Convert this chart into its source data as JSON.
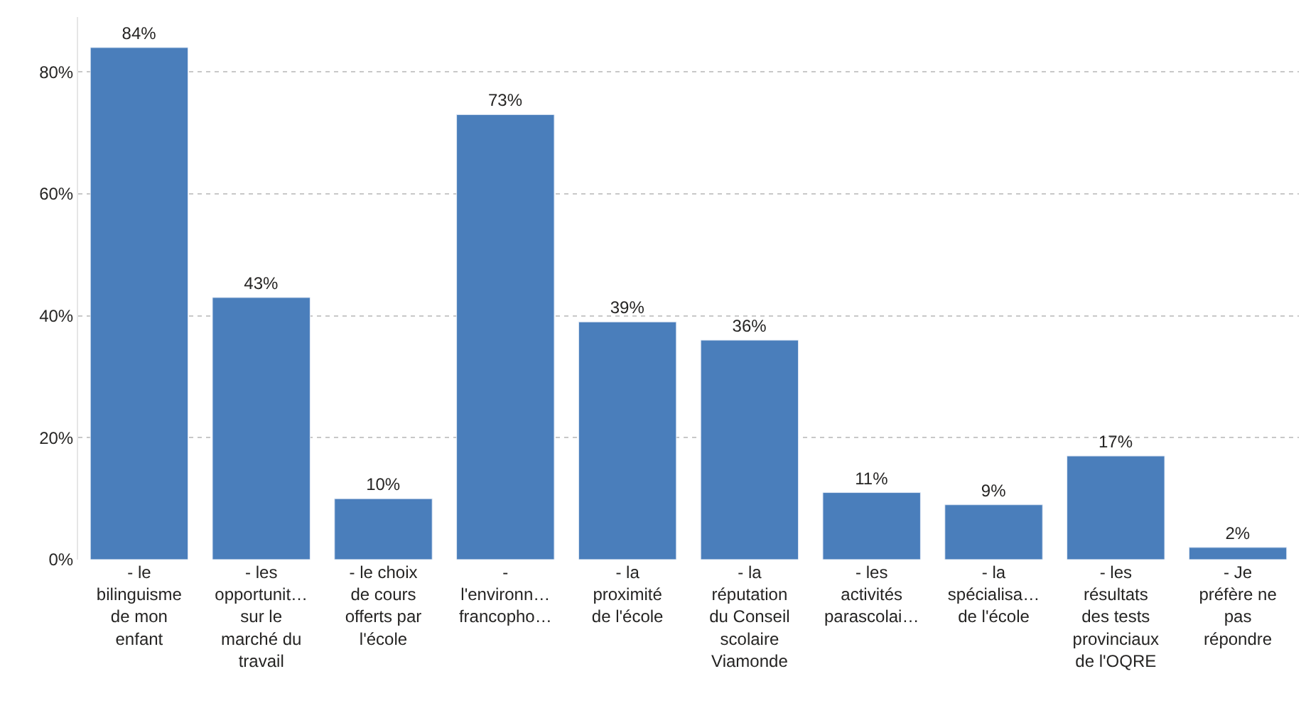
{
  "chart_data": {
    "type": "bar",
    "categories": [
      "- le bilinguisme de mon enfant",
      "- les opportunit… sur le marché du travail",
      "- le choix de cours offerts par l'école",
      "- l'environn… francopho…",
      "- la proximité de l'école",
      "- la réputation du Conseil scolaire Viamonde",
      "- les activités parascolai…",
      "- la spécialisa… de l'école",
      "- les résultats des tests provinciaux de l'OQRE",
      "- Je préfère ne pas répondre"
    ],
    "values": [
      84,
      43,
      10,
      73,
      39,
      36,
      11,
      9,
      17,
      2
    ],
    "value_labels": [
      "84%",
      "43%",
      "10%",
      "73%",
      "39%",
      "36%",
      "11%",
      "9%",
      "17%",
      "2%"
    ],
    "color": "#4a7ebb",
    "ylim": [
      0,
      89
    ],
    "yticks": [
      {
        "value": 0,
        "label": "0%"
      },
      {
        "value": 20,
        "label": "20%"
      },
      {
        "value": 40,
        "label": "40%"
      },
      {
        "value": 60,
        "label": "60%"
      },
      {
        "value": 80,
        "label": "80%"
      }
    ],
    "grid": "y"
  }
}
